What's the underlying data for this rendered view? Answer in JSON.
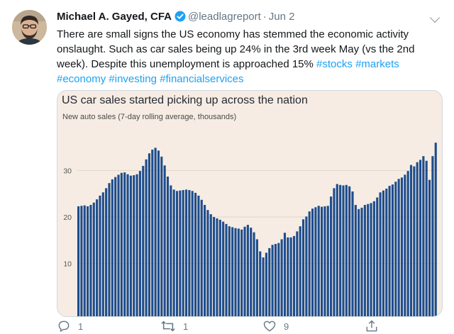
{
  "tweet": {
    "author_name": "Michael A. Gayed, CFA",
    "handle": "@leadlagreport",
    "separator": "·",
    "date": "Jun 2",
    "text": "There are small signs the US economy has stemmed the economic activity onslaught. Such as car sales being up 24% in the 3rd week May (vs the 2nd week). Despite this unemployment is approached 15%",
    "hashtags": [
      "#stocks",
      "#markets",
      "#economy",
      "#investing",
      "#financialservices"
    ],
    "replies": "1",
    "retweets": "1",
    "likes": "9"
  },
  "icons": {
    "verified": "verified-badge-icon",
    "menu": "chevron-down-icon",
    "reply": "reply-icon",
    "retweet": "retweet-icon",
    "like": "heart-icon",
    "share": "share-icon"
  },
  "colors": {
    "link": "#1da1f2",
    "chart_background": "#f6ece3",
    "bar": "#1e4d8c",
    "muted": "#657786"
  },
  "chart_data": {
    "type": "bar",
    "title": "US car sales started picking up across the nation",
    "subtitle": "New auto sales (7-day rolling average, thousands)",
    "xlabel": "",
    "ylabel": "",
    "ylim": [
      0,
      38
    ],
    "yticks": [
      10,
      20,
      30
    ],
    "grid": true,
    "values": [
      22.3,
      22.4,
      22.5,
      22.3,
      22.6,
      23.1,
      23.8,
      24.6,
      25.3,
      26.2,
      27.3,
      28.1,
      28.6,
      29.1,
      29.5,
      29.6,
      29.2,
      28.9,
      29.0,
      29.2,
      29.9,
      31.0,
      32.4,
      33.7,
      34.5,
      34.9,
      34.3,
      33.0,
      31.1,
      28.7,
      26.8,
      25.9,
      25.6,
      25.7,
      25.8,
      25.9,
      25.8,
      25.6,
      25.2,
      24.6,
      23.7,
      22.6,
      21.5,
      20.6,
      20.0,
      19.7,
      19.4,
      19.0,
      18.5,
      18.0,
      17.8,
      17.6,
      17.5,
      17.3,
      17.9,
      18.3,
      17.7,
      16.7,
      15.2,
      12.6,
      11.3,
      12.3,
      13.3,
      14.0,
      14.2,
      14.4,
      15.2,
      16.6,
      15.6,
      15.6,
      15.9,
      16.9,
      18.0,
      19.5,
      20.1,
      21.2,
      21.8,
      22.1,
      22.4,
      22.2,
      22.3,
      22.4,
      24.4,
      26.2,
      27.1,
      26.9,
      26.8,
      26.9,
      26.6,
      25.5,
      22.6,
      21.7,
      22.0,
      22.6,
      22.8,
      23.0,
      23.4,
      24.2,
      25.3,
      25.7,
      26.1,
      26.7,
      27.0,
      27.6,
      28.2,
      28.5,
      29.1,
      29.9,
      31.2,
      30.9,
      31.8,
      32.3,
      33.1,
      32.1,
      28.0,
      33.1,
      36.0
    ]
  }
}
